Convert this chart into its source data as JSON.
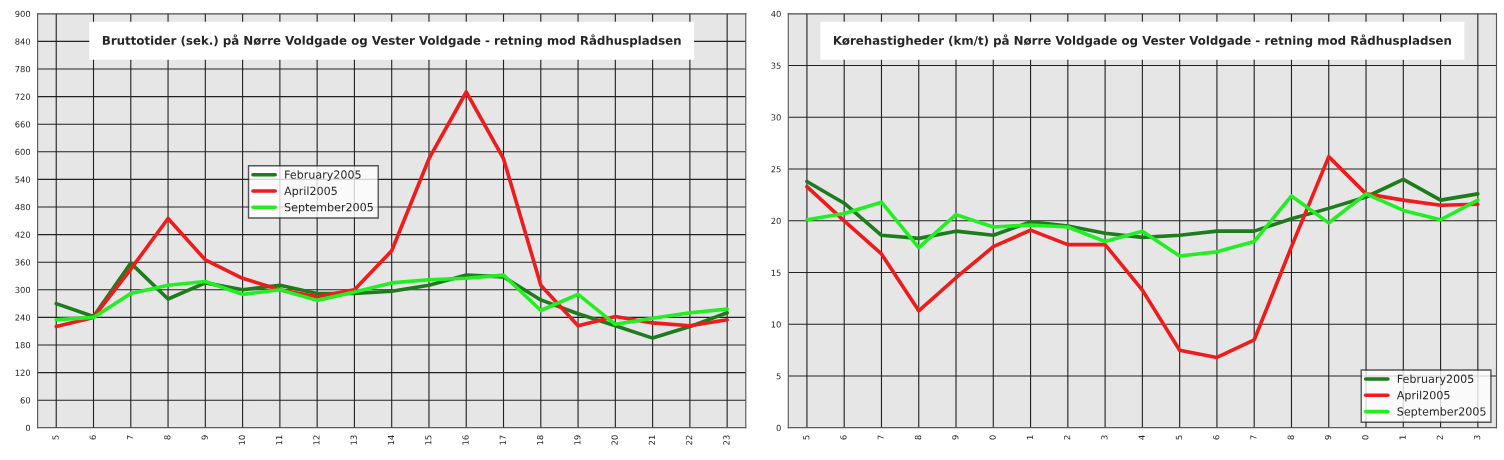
{
  "chart_data": [
    {
      "type": "line",
      "title": "Bruttotider (sek.) på Nørre Voldgade og Vester Voldgade - retning mod Rådhuspladsen",
      "categories": [
        "5",
        "6",
        "7",
        "8",
        "9",
        "10",
        "11",
        "12",
        "13",
        "14",
        "15",
        "16",
        "17",
        "18",
        "19",
        "20",
        "21",
        "22",
        "23"
      ],
      "series": [
        {
          "name": "February2005",
          "color": "#1e7b1e",
          "values": [
            270,
            242,
            358,
            280,
            315,
            300,
            310,
            292,
            292,
            297,
            310,
            332,
            328,
            278,
            248,
            222,
            195,
            220,
            250
          ]
        },
        {
          "name": "April2005",
          "color": "#ee1c1c",
          "values": [
            220,
            240,
            345,
            455,
            365,
            325,
            300,
            285,
            300,
            385,
            585,
            730,
            585,
            310,
            222,
            242,
            228,
            222,
            235
          ]
        },
        {
          "name": "September2005",
          "color": "#22ee22",
          "values": [
            235,
            240,
            292,
            310,
            318,
            290,
            300,
            277,
            295,
            315,
            322,
            325,
            332,
            255,
            290,
            225,
            238,
            250,
            258
          ]
        }
      ],
      "ylim": [
        0,
        900
      ],
      "yticks": [
        0,
        60,
        120,
        180,
        240,
        300,
        360,
        420,
        480,
        540,
        600,
        660,
        720,
        780,
        840,
        900
      ],
      "grid": true,
      "legend": "center left",
      "marker": "none",
      "line_style": "solid"
    },
    {
      "type": "line",
      "title": "Kørehastigheder (km/t) på Nørre Voldgade og Vester Voldgade - retning mod Rådhuspladsen",
      "categories": [
        "5",
        "6",
        "7",
        "8",
        "9",
        "0",
        "1",
        "2",
        "3",
        "4",
        "5",
        "6",
        "7",
        "8",
        "9",
        "0",
        "1",
        "2",
        "3"
      ],
      "series": [
        {
          "name": "February2005",
          "color": "#1e7b1e",
          "values": [
            23.8,
            21.7,
            18.6,
            18.3,
            19.0,
            18.6,
            19.9,
            19.5,
            18.8,
            18.4,
            18.6,
            19.0,
            19.0,
            20.2,
            21.2,
            22.3,
            24.0,
            22.0,
            22.6
          ]
        },
        {
          "name": "April2005",
          "color": "#ee1c1c",
          "values": [
            23.3,
            20.0,
            16.8,
            11.3,
            14.5,
            17.5,
            19.1,
            17.7,
            17.7,
            13.3,
            7.5,
            6.8,
            8.5,
            17.5,
            26.2,
            22.6,
            22.0,
            21.5,
            21.6
          ]
        },
        {
          "name": "September2005",
          "color": "#22ee22",
          "values": [
            20.1,
            20.7,
            21.8,
            17.4,
            20.6,
            19.4,
            19.6,
            19.4,
            18.0,
            19.0,
            16.6,
            17.0,
            18.0,
            22.4,
            19.8,
            22.6,
            21.0,
            20.1,
            22.0
          ]
        }
      ],
      "ylim": [
        0,
        40
      ],
      "yticks": [
        0,
        5,
        10,
        15,
        20,
        25,
        30,
        35,
        40
      ],
      "grid": true,
      "legend": "lower right",
      "marker": "none",
      "line_style": "solid"
    }
  ]
}
